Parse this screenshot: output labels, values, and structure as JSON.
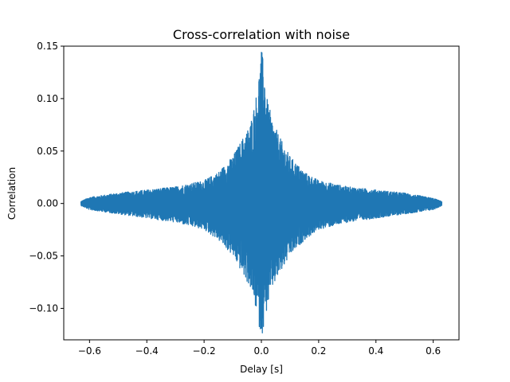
{
  "chart_data": {
    "type": "line",
    "title": "Cross-correlation with noise",
    "xlabel": "Delay [s]",
    "ylabel": "Correlation",
    "xlim": [
      -0.69,
      0.69
    ],
    "ylim": [
      -0.13,
      0.15
    ],
    "x_ticks": [
      -0.6,
      -0.4,
      -0.2,
      0.0,
      0.2,
      0.4,
      0.6
    ],
    "x_tick_labels": [
      "−0.6",
      "−0.4",
      "−0.2",
      "0.0",
      "0.2",
      "0.4",
      "0.6"
    ],
    "y_ticks": [
      -0.1,
      -0.05,
      0.0,
      0.05,
      0.1,
      0.15
    ],
    "y_tick_labels": [
      "−0.10",
      "−0.05",
      "0.00",
      "0.05",
      "0.10",
      "0.15"
    ],
    "grid": false,
    "color": "#1f77b4",
    "envelope": {
      "x": [
        -0.63,
        -0.6,
        -0.5,
        -0.4,
        -0.3,
        -0.2,
        -0.15,
        -0.1,
        -0.07,
        -0.04,
        -0.02,
        -0.01,
        0.0,
        0.01,
        0.02,
        0.04,
        0.07,
        0.1,
        0.15,
        0.2,
        0.3,
        0.4,
        0.5,
        0.6,
        0.63
      ],
      "upper": [
        0.002,
        0.006,
        0.01,
        0.013,
        0.016,
        0.022,
        0.03,
        0.045,
        0.06,
        0.075,
        0.1,
        0.12,
        0.148,
        0.13,
        0.1,
        0.078,
        0.06,
        0.045,
        0.03,
        0.022,
        0.016,
        0.013,
        0.01,
        0.005,
        0.002
      ],
      "lower": [
        -0.002,
        -0.006,
        -0.01,
        -0.014,
        -0.018,
        -0.025,
        -0.035,
        -0.05,
        -0.065,
        -0.08,
        -0.1,
        -0.115,
        -0.127,
        -0.117,
        -0.1,
        -0.08,
        -0.065,
        -0.05,
        -0.035,
        -0.025,
        -0.018,
        -0.014,
        -0.01,
        -0.006,
        -0.002
      ]
    }
  }
}
